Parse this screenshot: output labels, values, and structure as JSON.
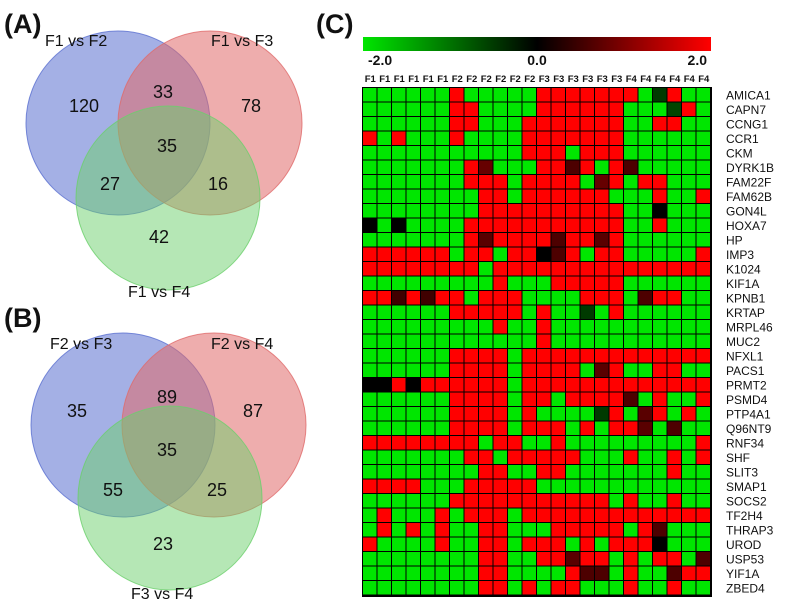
{
  "panels": {
    "a_label": "(A)",
    "b_label": "(B)",
    "c_label": "(C)"
  },
  "colors": {
    "venn_blue": "#5a6fd0",
    "venn_red": "#e06a6a",
    "venn_green": "#6ccf6c",
    "heat_low": "#00e600",
    "heat_mid": "#000000",
    "heat_high": "#ff0000"
  },
  "chart_data": [
    {
      "type": "venn",
      "panel": "(A)",
      "sets": [
        "F1 vs F2",
        "F1 vs F3",
        "F1 vs F4"
      ],
      "regions": {
        "only_1": 120,
        "only_2": 78,
        "only_3": 42,
        "s12": 33,
        "s13": 27,
        "s23": 16,
        "s123": 35
      }
    },
    {
      "type": "venn",
      "panel": "(B)",
      "sets": [
        "F2 vs F3",
        "F2 vs F4",
        "F3 vs F4"
      ],
      "regions": {
        "only_1": 35,
        "only_2": 87,
        "only_3": 23,
        "s12": 89,
        "s13": 55,
        "s23": 25,
        "s123": 35
      }
    },
    {
      "type": "heatmap",
      "panel": "(C)",
      "scale": {
        "min": -2.0,
        "mid": 0.0,
        "max": 2.0,
        "labels": [
          "-2.0",
          "0.0",
          "2.0"
        ]
      },
      "columns": [
        "F1",
        "F1",
        "F1",
        "F1",
        "F1",
        "F1",
        "F2",
        "F2",
        "F2",
        "F2",
        "F2",
        "F2",
        "F3",
        "F3",
        "F3",
        "F3",
        "F3",
        "F3",
        "F4",
        "F4",
        "F4",
        "F4",
        "F4",
        "F4"
      ],
      "rows": [
        "AMICA1",
        "CAPN7",
        "CCNG1",
        "CCR1",
        "CKM",
        "DYRK1B",
        "FAM22F",
        "FAM62B",
        "GON4L",
        "HOXA7",
        "HP",
        "IMP3",
        "K1024",
        "KIF1A",
        "KPNB1",
        "KRTAP",
        "MRPL46",
        "MUC2",
        "NFXL1",
        "PACS1",
        "PRMT2",
        "PSMD4",
        "PTP4A1",
        "Q96NT9",
        "RNF34",
        "SHF",
        "SLIT3",
        "SMAP1",
        "SOCS2",
        "TF2H4",
        "THRAP3",
        "UROD",
        "USP53",
        "YIF1A",
        "ZBED4"
      ],
      "values": [
        [
          -2,
          -2,
          -2,
          -2,
          -2,
          -2,
          2,
          -2,
          -2,
          -2,
          -2,
          -2,
          2,
          2,
          2,
          2,
          2,
          2,
          2,
          -2,
          -0.5,
          2,
          -2,
          -2
        ],
        [
          -2,
          -2,
          -2,
          -2,
          -2,
          -2,
          2,
          2,
          -2,
          -2,
          -2,
          -2,
          2,
          2,
          2,
          2,
          2,
          2,
          -2,
          -2,
          -2,
          -0.6,
          2,
          -2
        ],
        [
          -2,
          -2,
          -2,
          -2,
          -2,
          -2,
          2,
          2,
          -2,
          -2,
          -2,
          2,
          2,
          2,
          2,
          2,
          2,
          2,
          -2,
          -2,
          2,
          2,
          -2,
          -2
        ],
        [
          2,
          -2,
          2,
          -2,
          -2,
          -2,
          2,
          -2,
          -2,
          -2,
          -2,
          2,
          2,
          2,
          2,
          2,
          2,
          2,
          -2,
          -2,
          -2,
          -2,
          -2,
          -2
        ],
        [
          -2,
          -2,
          -2,
          -2,
          -2,
          -2,
          -2,
          -2,
          -2,
          -2,
          -2,
          2,
          2,
          2,
          -2,
          2,
          2,
          2,
          -2,
          -2,
          -2,
          -2,
          -2,
          -2
        ],
        [
          -2,
          -2,
          -2,
          -2,
          -2,
          -2,
          -2,
          2,
          0.8,
          -2,
          -2,
          -2,
          2,
          2,
          0.6,
          2,
          -2,
          2,
          0.6,
          -2,
          -2,
          -2,
          -2,
          -2
        ],
        [
          -2,
          -2,
          -2,
          -2,
          -2,
          -2,
          -2,
          2,
          2,
          2,
          -2,
          2,
          2,
          2,
          2,
          -2,
          0.8,
          2,
          -2,
          2,
          2,
          -2,
          -2,
          -2
        ],
        [
          -2,
          -2,
          -2,
          -2,
          -2,
          -2,
          -2,
          -2,
          2,
          2,
          -2,
          2,
          2,
          2,
          2,
          2,
          2,
          -2,
          -2,
          -2,
          2,
          -2,
          -2,
          2
        ],
        [
          -2,
          -2,
          -2,
          -2,
          -2,
          -2,
          -2,
          -2,
          2,
          2,
          2,
          2,
          2,
          2,
          2,
          2,
          2,
          2,
          -2,
          -2,
          0,
          -2,
          -2,
          -2
        ],
        [
          0,
          -2,
          0,
          -2,
          -2,
          -2,
          -2,
          2,
          2,
          2,
          2,
          2,
          2,
          2,
          2,
          2,
          2,
          2,
          -2,
          -2,
          2,
          -2,
          -2,
          -2
        ],
        [
          -2,
          -2,
          -2,
          -2,
          -2,
          -2,
          -2,
          2,
          0.7,
          2,
          2,
          2,
          2,
          0.6,
          2,
          2,
          0.7,
          2,
          -2,
          -2,
          -2,
          -2,
          -2,
          -2
        ],
        [
          2,
          2,
          2,
          2,
          2,
          2,
          -2,
          2,
          2,
          -2,
          2,
          2,
          0,
          0.6,
          2,
          -2,
          2,
          2,
          -2,
          -2,
          -2,
          -2,
          -2,
          2
        ],
        [
          2,
          2,
          2,
          2,
          2,
          2,
          2,
          2,
          -2,
          2,
          2,
          2,
          2,
          2,
          2,
          2,
          2,
          2,
          2,
          2,
          2,
          2,
          2,
          2
        ],
        [
          -2,
          -2,
          -2,
          -2,
          -2,
          -2,
          -2,
          -2,
          -2,
          2,
          -2,
          -2,
          -2,
          2,
          2,
          2,
          2,
          2,
          -2,
          -2,
          -2,
          -2,
          -2,
          -2
        ],
        [
          2,
          2,
          0.5,
          2,
          0.5,
          2,
          2,
          -2,
          2,
          2,
          2,
          -2,
          -2,
          -2,
          -2,
          2,
          2,
          2,
          -2,
          0.6,
          2,
          2,
          -2,
          -2
        ],
        [
          -2,
          -2,
          -2,
          -2,
          -2,
          -2,
          2,
          2,
          2,
          2,
          2,
          -2,
          2,
          -2,
          -2,
          -0.5,
          -2,
          2,
          -2,
          -2,
          -2,
          -2,
          -2,
          -2
        ],
        [
          -2,
          -2,
          -2,
          -2,
          -2,
          -2,
          -2,
          -2,
          -2,
          2,
          -2,
          -2,
          2,
          -2,
          -2,
          -2,
          -2,
          -2,
          -2,
          -2,
          -2,
          -2,
          -2,
          -2
        ],
        [
          -2,
          -2,
          -2,
          -2,
          -2,
          -2,
          -2,
          -2,
          -2,
          -2,
          -2,
          -2,
          2,
          -2,
          -2,
          -2,
          -2,
          -2,
          -2,
          -2,
          -2,
          -2,
          -2,
          -2
        ],
        [
          -2,
          -2,
          -2,
          -2,
          -2,
          -2,
          2,
          2,
          2,
          2,
          -2,
          2,
          2,
          2,
          2,
          2,
          2,
          2,
          2,
          2,
          2,
          2,
          2,
          2
        ],
        [
          -2,
          -2,
          -2,
          -2,
          -2,
          -2,
          2,
          2,
          2,
          2,
          -2,
          2,
          2,
          2,
          2,
          -2,
          0.7,
          2,
          -2,
          -2,
          2,
          2,
          -2,
          -2
        ],
        [
          0,
          0,
          2,
          0,
          2,
          2,
          2,
          2,
          2,
          2,
          -2,
          2,
          2,
          2,
          2,
          2,
          2,
          2,
          2,
          2,
          2,
          2,
          2,
          2
        ],
        [
          -2,
          -2,
          -2,
          -2,
          -2,
          -2,
          2,
          2,
          2,
          2,
          -2,
          2,
          2,
          -2,
          2,
          2,
          2,
          2,
          0.6,
          -2,
          2,
          -2,
          -2,
          2
        ],
        [
          -2,
          -2,
          -2,
          -2,
          -2,
          -2,
          2,
          2,
          2,
          2,
          -2,
          2,
          -2,
          -2,
          -2,
          -2,
          -0.5,
          2,
          -2,
          0.7,
          2,
          -2,
          2,
          -2
        ],
        [
          -2,
          -2,
          -2,
          -2,
          -2,
          -2,
          2,
          2,
          2,
          2,
          -2,
          2,
          2,
          2,
          -2,
          2,
          -2,
          2,
          2,
          0.7,
          -2,
          0.6,
          -2,
          -2
        ],
        [
          2,
          2,
          2,
          2,
          2,
          2,
          2,
          2,
          -2,
          2,
          2,
          -2,
          -2,
          2,
          -2,
          -2,
          -2,
          -2,
          -2,
          -2,
          -2,
          -2,
          -2,
          2
        ],
        [
          -2,
          -2,
          -2,
          -2,
          -2,
          -2,
          -2,
          2,
          2,
          -2,
          2,
          2,
          2,
          2,
          2,
          -2,
          -2,
          -2,
          2,
          -2,
          -2,
          2,
          -2,
          2
        ],
        [
          -2,
          -2,
          -2,
          -2,
          -2,
          -2,
          -2,
          -2,
          2,
          2,
          -2,
          -2,
          2,
          2,
          -2,
          -2,
          -2,
          -2,
          -2,
          -2,
          -2,
          2,
          -2,
          -2
        ],
        [
          2,
          2,
          2,
          2,
          -2,
          -2,
          -2,
          2,
          2,
          2,
          2,
          2,
          -2,
          -2,
          -2,
          -2,
          -2,
          -2,
          -2,
          -2,
          -2,
          -2,
          -2,
          -2
        ],
        [
          -2,
          -2,
          -2,
          -2,
          -2,
          -2,
          2,
          2,
          2,
          2,
          2,
          2,
          2,
          2,
          2,
          2,
          2,
          -2,
          2,
          -2,
          -2,
          2,
          -2,
          -2
        ],
        [
          -2,
          2,
          -2,
          -2,
          -2,
          2,
          -2,
          2,
          2,
          2,
          -2,
          2,
          2,
          2,
          2,
          2,
          2,
          2,
          2,
          2,
          2,
          2,
          2,
          2
        ],
        [
          -2,
          2,
          -2,
          2,
          -2,
          2,
          -2,
          -2,
          2,
          2,
          -2,
          -2,
          -2,
          2,
          2,
          2,
          2,
          2,
          -2,
          2,
          0.6,
          -2,
          -2,
          -2
        ],
        [
          2,
          -2,
          -2,
          -2,
          -2,
          2,
          -2,
          -2,
          2,
          2,
          -2,
          2,
          2,
          2,
          -2,
          2,
          -2,
          2,
          2,
          2,
          0,
          -2,
          -2,
          -2
        ],
        [
          -2,
          -2,
          -2,
          -2,
          -2,
          -2,
          -2,
          -2,
          2,
          2,
          -2,
          -2,
          2,
          2,
          0.7,
          2,
          2,
          -2,
          2,
          -2,
          2,
          2,
          -2,
          0.6
        ],
        [
          -2,
          -2,
          -2,
          -2,
          -2,
          -2,
          -2,
          -2,
          2,
          2,
          -2,
          -2,
          -2,
          -2,
          2,
          0.6,
          0.6,
          -2,
          2,
          -2,
          -2,
          0.6,
          2,
          2
        ],
        [
          -2,
          -2,
          -2,
          -2,
          -2,
          -2,
          -2,
          -2,
          2,
          2,
          -2,
          2,
          -2,
          2,
          2,
          -2,
          -2,
          -2,
          2,
          -2,
          -2,
          2,
          -2,
          -2
        ]
      ]
    }
  ]
}
